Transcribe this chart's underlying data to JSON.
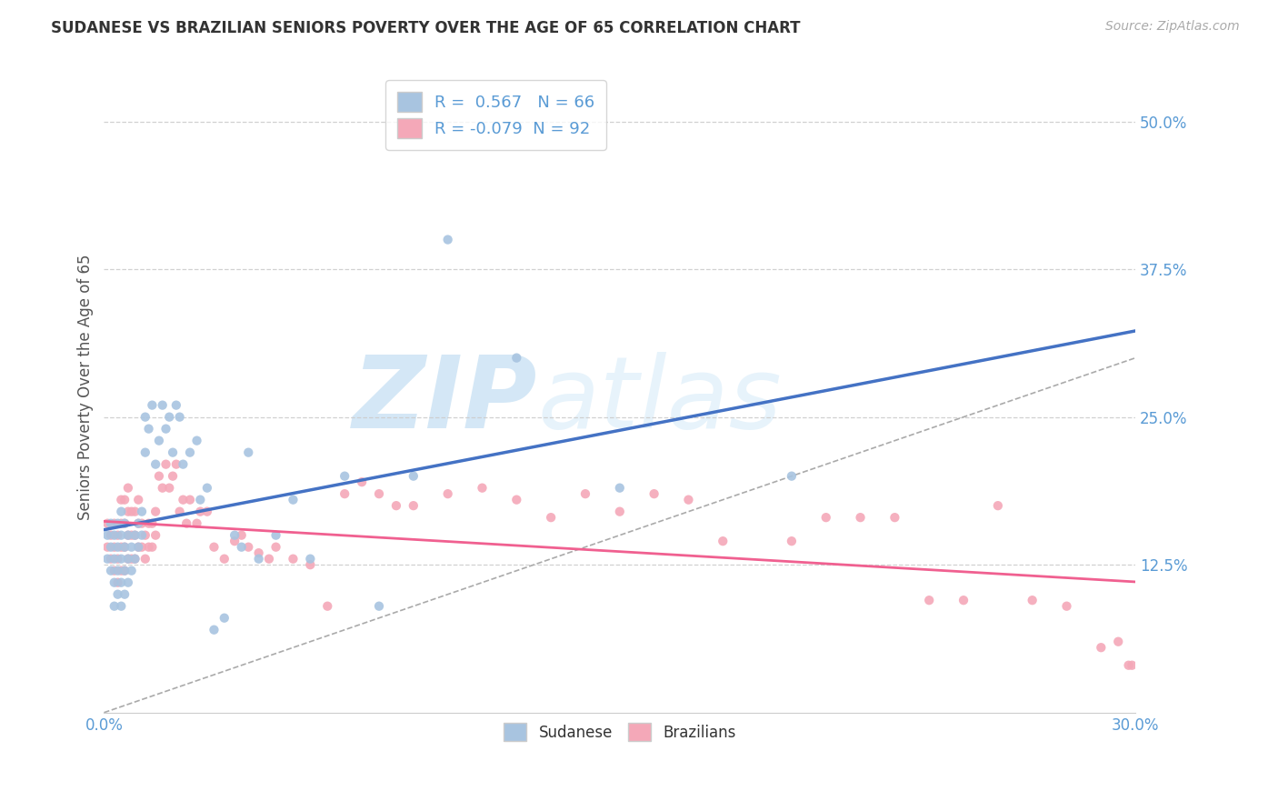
{
  "title": "SUDANESE VS BRAZILIAN SENIORS POVERTY OVER THE AGE OF 65 CORRELATION CHART",
  "source": "Source: ZipAtlas.com",
  "ylabel": "Seniors Poverty Over the Age of 65",
  "xlim": [
    0.0,
    0.3
  ],
  "ylim": [
    0.0,
    0.55
  ],
  "y_tick_labels_right": [
    "50.0%",
    "37.5%",
    "25.0%",
    "12.5%"
  ],
  "y_ticks_right": [
    0.5,
    0.375,
    0.25,
    0.125
  ],
  "sudanese_R": 0.567,
  "sudanese_N": 66,
  "brazilian_R": -0.079,
  "brazilian_N": 92,
  "sudanese_color": "#a8c4e0",
  "brazilian_color": "#f4a8b8",
  "sudanese_line_color": "#4472c4",
  "brazilian_line_color": "#f06090",
  "diagonal_line_color": "#aaaaaa",
  "background_color": "#ffffff",
  "grid_color": "#cccccc",
  "watermark_zip": "ZIP",
  "watermark_atlas": "atlas",
  "sudanese_x": [
    0.001,
    0.001,
    0.002,
    0.002,
    0.002,
    0.003,
    0.003,
    0.003,
    0.003,
    0.004,
    0.004,
    0.004,
    0.004,
    0.005,
    0.005,
    0.005,
    0.005,
    0.005,
    0.006,
    0.006,
    0.006,
    0.006,
    0.007,
    0.007,
    0.007,
    0.008,
    0.008,
    0.009,
    0.009,
    0.01,
    0.01,
    0.011,
    0.011,
    0.012,
    0.012,
    0.013,
    0.014,
    0.015,
    0.016,
    0.017,
    0.018,
    0.019,
    0.02,
    0.021,
    0.022,
    0.023,
    0.025,
    0.027,
    0.028,
    0.03,
    0.032,
    0.035,
    0.038,
    0.04,
    0.042,
    0.045,
    0.05,
    0.055,
    0.06,
    0.07,
    0.08,
    0.09,
    0.1,
    0.12,
    0.15,
    0.2
  ],
  "sudanese_y": [
    0.13,
    0.15,
    0.12,
    0.14,
    0.16,
    0.09,
    0.11,
    0.13,
    0.15,
    0.1,
    0.12,
    0.14,
    0.16,
    0.09,
    0.11,
    0.13,
    0.15,
    0.17,
    0.1,
    0.12,
    0.14,
    0.16,
    0.11,
    0.13,
    0.15,
    0.12,
    0.14,
    0.13,
    0.15,
    0.14,
    0.16,
    0.15,
    0.17,
    0.22,
    0.25,
    0.24,
    0.26,
    0.21,
    0.23,
    0.26,
    0.24,
    0.25,
    0.22,
    0.26,
    0.25,
    0.21,
    0.22,
    0.23,
    0.18,
    0.19,
    0.07,
    0.08,
    0.15,
    0.14,
    0.22,
    0.13,
    0.15,
    0.18,
    0.13,
    0.2,
    0.09,
    0.2,
    0.4,
    0.3,
    0.19,
    0.2
  ],
  "brazilian_x": [
    0.001,
    0.001,
    0.002,
    0.002,
    0.003,
    0.003,
    0.003,
    0.004,
    0.004,
    0.004,
    0.005,
    0.005,
    0.005,
    0.005,
    0.006,
    0.006,
    0.006,
    0.006,
    0.007,
    0.007,
    0.007,
    0.007,
    0.008,
    0.008,
    0.008,
    0.009,
    0.009,
    0.009,
    0.01,
    0.01,
    0.01,
    0.011,
    0.011,
    0.012,
    0.012,
    0.013,
    0.013,
    0.014,
    0.014,
    0.015,
    0.015,
    0.016,
    0.017,
    0.018,
    0.019,
    0.02,
    0.021,
    0.022,
    0.023,
    0.024,
    0.025,
    0.027,
    0.028,
    0.03,
    0.032,
    0.035,
    0.038,
    0.04,
    0.042,
    0.045,
    0.048,
    0.05,
    0.055,
    0.06,
    0.065,
    0.07,
    0.075,
    0.08,
    0.085,
    0.09,
    0.1,
    0.11,
    0.12,
    0.13,
    0.14,
    0.15,
    0.16,
    0.17,
    0.18,
    0.2,
    0.21,
    0.22,
    0.23,
    0.24,
    0.25,
    0.26,
    0.27,
    0.28,
    0.29,
    0.295,
    0.298,
    0.299
  ],
  "brazilian_y": [
    0.14,
    0.16,
    0.13,
    0.15,
    0.12,
    0.14,
    0.16,
    0.11,
    0.13,
    0.15,
    0.12,
    0.14,
    0.16,
    0.18,
    0.12,
    0.14,
    0.16,
    0.18,
    0.13,
    0.15,
    0.17,
    0.19,
    0.13,
    0.15,
    0.17,
    0.13,
    0.15,
    0.17,
    0.14,
    0.16,
    0.18,
    0.14,
    0.16,
    0.13,
    0.15,
    0.14,
    0.16,
    0.14,
    0.16,
    0.15,
    0.17,
    0.2,
    0.19,
    0.21,
    0.19,
    0.2,
    0.21,
    0.17,
    0.18,
    0.16,
    0.18,
    0.16,
    0.17,
    0.17,
    0.14,
    0.13,
    0.145,
    0.15,
    0.14,
    0.135,
    0.13,
    0.14,
    0.13,
    0.125,
    0.09,
    0.185,
    0.195,
    0.185,
    0.175,
    0.175,
    0.185,
    0.19,
    0.18,
    0.165,
    0.185,
    0.17,
    0.185,
    0.18,
    0.145,
    0.145,
    0.165,
    0.165,
    0.165,
    0.095,
    0.095,
    0.175,
    0.095,
    0.09,
    0.055,
    0.06,
    0.04,
    0.04
  ]
}
